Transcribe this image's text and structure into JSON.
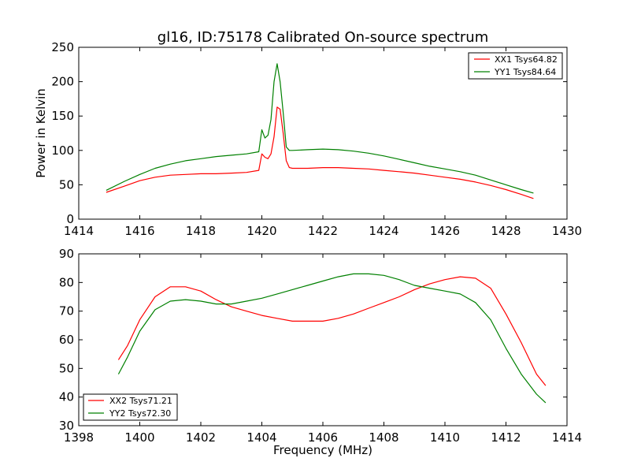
{
  "chart_data": [
    {
      "type": "line",
      "title": "gl16, ID:75178 Calibrated On-source spectrum",
      "xlabel": "",
      "ylabel": "Power in Kelvin",
      "xlim": [
        1414,
        1430
      ],
      "ylim": [
        0,
        250
      ],
      "xticks": [
        1414,
        1416,
        1418,
        1420,
        1422,
        1424,
        1426,
        1428,
        1430
      ],
      "yticks": [
        0,
        50,
        100,
        150,
        200,
        250
      ],
      "grid": false,
      "legend_position": "top-right",
      "series": [
        {
          "name": "XX1 Tsys64.82",
          "color": "#ff0000",
          "x": [
            1414.9,
            1415.5,
            1416.0,
            1416.5,
            1417.0,
            1417.5,
            1418.0,
            1418.5,
            1419.0,
            1419.5,
            1419.9,
            1420.0,
            1420.1,
            1420.2,
            1420.3,
            1420.4,
            1420.5,
            1420.6,
            1420.7,
            1420.8,
            1420.9,
            1421.0,
            1421.5,
            1422.0,
            1422.5,
            1423.0,
            1423.5,
            1424.0,
            1424.5,
            1425.0,
            1425.5,
            1426.0,
            1426.5,
            1427.0,
            1427.5,
            1428.0,
            1428.5,
            1428.9
          ],
          "y": [
            39,
            48,
            56,
            61,
            64,
            65,
            66,
            66,
            67,
            68,
            71,
            95,
            90,
            88,
            95,
            120,
            163,
            160,
            125,
            85,
            75,
            74,
            74,
            75,
            75,
            74,
            73,
            71,
            69,
            67,
            64,
            61,
            58,
            54,
            49,
            43,
            36,
            30
          ]
        },
        {
          "name": "YY1 Tsys84.64",
          "color": "#008000",
          "x": [
            1414.9,
            1415.5,
            1416.0,
            1416.5,
            1417.0,
            1417.5,
            1418.0,
            1418.5,
            1419.0,
            1419.5,
            1419.9,
            1420.0,
            1420.1,
            1420.2,
            1420.3,
            1420.4,
            1420.5,
            1420.6,
            1420.7,
            1420.8,
            1420.9,
            1421.0,
            1421.5,
            1422.0,
            1422.5,
            1423.0,
            1423.5,
            1424.0,
            1424.5,
            1425.0,
            1425.5,
            1426.0,
            1426.5,
            1427.0,
            1427.5,
            1428.0,
            1428.5,
            1428.9
          ],
          "y": [
            42,
            55,
            65,
            74,
            80,
            85,
            88,
            91,
            93,
            95,
            98,
            130,
            118,
            122,
            145,
            200,
            226,
            200,
            155,
            105,
            100,
            100,
            101,
            102,
            101,
            99,
            96,
            92,
            87,
            82,
            77,
            73,
            69,
            64,
            57,
            50,
            43,
            38
          ]
        }
      ]
    },
    {
      "type": "line",
      "title": "",
      "xlabel": "Frequency (MHz)",
      "ylabel": "",
      "xlim": [
        1398,
        1414
      ],
      "ylim": [
        30,
        90
      ],
      "xticks": [
        1398,
        1400,
        1402,
        1404,
        1406,
        1408,
        1410,
        1412,
        1414
      ],
      "yticks": [
        30,
        40,
        50,
        60,
        70,
        80,
        90
      ],
      "grid": false,
      "legend_position": "bottom-left",
      "series": [
        {
          "name": "XX2 Tsys71.21",
          "color": "#ff0000",
          "x": [
            1399.3,
            1399.6,
            1400.0,
            1400.5,
            1401.0,
            1401.5,
            1402.0,
            1402.5,
            1403.0,
            1403.5,
            1404.0,
            1404.5,
            1405.0,
            1405.5,
            1406.0,
            1406.5,
            1407.0,
            1407.5,
            1408.0,
            1408.5,
            1409.0,
            1409.5,
            1410.0,
            1410.5,
            1411.0,
            1411.5,
            1412.0,
            1412.5,
            1413.0,
            1413.3
          ],
          "y": [
            53,
            58,
            67,
            75,
            78.5,
            78.5,
            77,
            74,
            71.5,
            70,
            68.5,
            67.5,
            66.5,
            66.5,
            66.5,
            67.5,
            69,
            71,
            73,
            75,
            77.5,
            79.5,
            81,
            82,
            81.5,
            78,
            69,
            59,
            48,
            44
          ]
        },
        {
          "name": "YY2 Tsys72.30",
          "color": "#008000",
          "x": [
            1399.3,
            1399.6,
            1400.0,
            1400.5,
            1401.0,
            1401.5,
            1402.0,
            1402.5,
            1403.0,
            1403.5,
            1404.0,
            1404.5,
            1405.0,
            1405.5,
            1406.0,
            1406.5,
            1407.0,
            1407.5,
            1408.0,
            1408.5,
            1409.0,
            1409.5,
            1410.0,
            1410.5,
            1411.0,
            1411.5,
            1412.0,
            1412.5,
            1413.0,
            1413.3
          ],
          "y": [
            48,
            54,
            63,
            70.5,
            73.5,
            74,
            73.5,
            72.5,
            72.5,
            73.5,
            74.5,
            76,
            77.5,
            79,
            80.5,
            82,
            83,
            83,
            82.5,
            81,
            79,
            78,
            77,
            76,
            73,
            67,
            57,
            48,
            41,
            38
          ]
        }
      ]
    }
  ]
}
